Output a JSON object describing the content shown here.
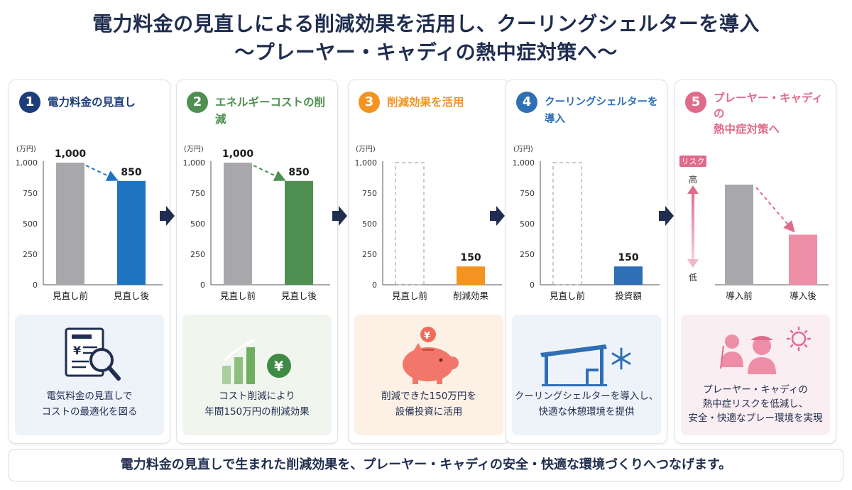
{
  "title": {
    "line1": "電力料金の見直しによる削減効果を活用し、クーリングシェルターを導入",
    "line2": "〜プレーヤー・キャディの熱中症対策へ〜"
  },
  "colors": {
    "navy": "#1f2d4f",
    "gray_bar": "#a8a8ac",
    "blue": "#1f74c2",
    "green": "#4e8f52",
    "orange": "#f39420",
    "shelter_blue": "#2f6fb5",
    "pink": "#e06a8a",
    "pink_bar": "#ee8ea6"
  },
  "steps": [
    {
      "number": "1",
      "title": "電力料金の見直し",
      "color": "#1d3d7a",
      "info_text": "電気料金の見直しで\nコストの最適化を図る",
      "info_bg": "#eef3fa",
      "icon": "bill-magnifier-icon"
    },
    {
      "number": "2",
      "title": "エネルギーコストの削減",
      "color": "#4e8f52",
      "info_text": "コスト削減により\n年間150万円の削減効果",
      "info_bg": "#f0f5ee",
      "icon": "growth-yen-icon"
    },
    {
      "number": "3",
      "title": "削減効果を活用",
      "color": "#f39420",
      "info_text": "削減できた150万円を\n設備投資に活用",
      "info_bg": "#fdf1e6",
      "icon": "piggy-bank-icon"
    },
    {
      "number": "4",
      "title": "クーリングシェルターを導入",
      "color": "#2f6fb5",
      "info_text": "クーリングシェルターを導入し、\n快適な休憩環境を提供",
      "info_bg": "#eef3fa",
      "icon": "shelter-snowflake-icon"
    },
    {
      "number": "5",
      "title": "プレーヤー・キャディの\n熱中症対策へ",
      "color": "#e06a8a",
      "info_text": "プレーヤー・キャディの\n熱中症リスクを低減し、\n安全・快適なプレー環境を実現",
      "info_bg": "#fbeef2",
      "icon": "players-sun-icon"
    }
  ],
  "chart_data": [
    {
      "type": "bar",
      "unit": "(万円)",
      "ylim": [
        0,
        1000
      ],
      "yticks": [
        "0",
        "250",
        "500",
        "750",
        "1,000"
      ],
      "categories": [
        "見直し前",
        "見直し後"
      ],
      "values": [
        1000,
        850
      ],
      "value_labels": [
        "1,000",
        "850"
      ],
      "bar_colors": [
        "#a8a8ac",
        "#1f74c2"
      ],
      "trend_arrow": true
    },
    {
      "type": "bar",
      "unit": "(万円)",
      "ylim": [
        0,
        1000
      ],
      "yticks": [
        "0",
        "250",
        "500",
        "750",
        "1,000"
      ],
      "categories": [
        "見直し前",
        "見直し後"
      ],
      "values": [
        1000,
        850
      ],
      "value_labels": [
        "1,000",
        "850"
      ],
      "bar_colors": [
        "#a8a8ac",
        "#4e8f52"
      ],
      "trend_arrow": true
    },
    {
      "type": "bar",
      "unit": "(万円)",
      "ylim": [
        0,
        1000
      ],
      "yticks": [
        "0",
        "250",
        "500",
        "750",
        "1,000"
      ],
      "categories": [
        "見直し前",
        "削減効果"
      ],
      "values": [
        1000,
        150
      ],
      "value_labels": [
        "",
        "150"
      ],
      "bar_colors": [
        "outline",
        "#f39420"
      ],
      "trend_arrow": false
    },
    {
      "type": "bar",
      "unit": "(万円)",
      "ylim": [
        0,
        1000
      ],
      "yticks": [
        "0",
        "250",
        "500",
        "750",
        "1,000"
      ],
      "categories": [
        "見直し前",
        "投資額"
      ],
      "values": [
        1000,
        150
      ],
      "value_labels": [
        "",
        "150"
      ],
      "bar_colors": [
        "outline",
        "#2f6fb5"
      ],
      "trend_arrow": false
    },
    {
      "type": "bar",
      "risk_label": "リスク",
      "risk_high": "高",
      "risk_low": "低",
      "categories": [
        "導入前",
        "導入後"
      ],
      "values": [
        1.0,
        0.5
      ],
      "bar_colors": [
        "#a8a8ac",
        "#ee8ea6"
      ],
      "trend_arrow": true
    }
  ],
  "footer": "電力料金の見直しで生まれた削減効果を、プレーヤー・キャディの安全・快適な環境づくりへつなげます。"
}
